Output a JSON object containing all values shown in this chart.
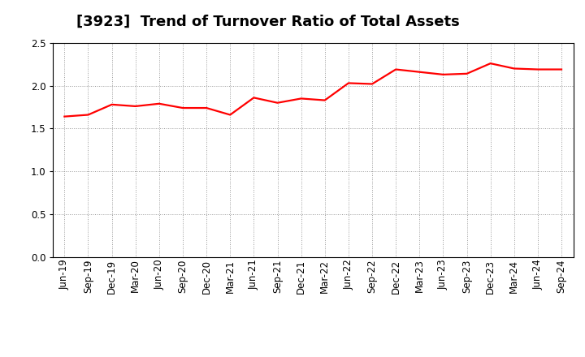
{
  "title": "[3923]  Trend of Turnover Ratio of Total Assets",
  "labels": [
    "Jun-19",
    "Sep-19",
    "Dec-19",
    "Mar-20",
    "Jun-20",
    "Sep-20",
    "Dec-20",
    "Mar-21",
    "Jun-21",
    "Sep-21",
    "Dec-21",
    "Mar-22",
    "Jun-22",
    "Sep-22",
    "Dec-22",
    "Mar-23",
    "Jun-23",
    "Sep-23",
    "Dec-23",
    "Mar-24",
    "Jun-24",
    "Sep-24"
  ],
  "values": [
    1.64,
    1.66,
    1.78,
    1.76,
    1.79,
    1.74,
    1.74,
    1.66,
    1.86,
    1.8,
    1.85,
    1.83,
    2.03,
    2.02,
    2.19,
    2.16,
    2.13,
    2.14,
    2.26,
    2.2,
    2.19,
    2.19
  ],
  "line_color": "#ff0000",
  "line_width": 1.6,
  "ylim": [
    0.0,
    2.5
  ],
  "yticks": [
    0.0,
    0.5,
    1.0,
    1.5,
    2.0,
    2.5
  ],
  "grid_color": "#999999",
  "bg_color": "#ffffff",
  "plot_bg_color": "#ffffff",
  "title_fontsize": 13,
  "tick_fontsize": 8.5
}
